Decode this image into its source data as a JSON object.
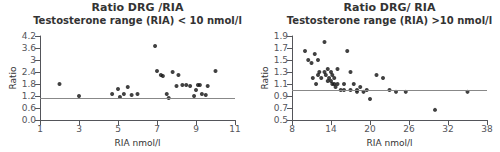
{
  "chart_data": [
    {
      "type": "scatter",
      "title": "Ratio DRG /RIA",
      "subtitle": "Testosterone range (RIA) < 10 nmol/l",
      "x_label": "RIA nmol/l",
      "y_label": "Ratio",
      "xlim": [
        1,
        11
      ],
      "ylim": [
        0,
        4.2
      ],
      "xticks": [
        1,
        3,
        5,
        7,
        9,
        11
      ],
      "yticks": [
        {
          "value": 0,
          "label": "0.0"
        },
        0.6,
        1.2,
        1.8,
        2.4,
        3.0,
        3.6,
        4.2
      ],
      "hline": 1.1,
      "color": "#111111",
      "grid": false,
      "x": [
        2.0,
        3.0,
        4.7,
        5.0,
        5.1,
        5.3,
        5.5,
        5.7,
        6.0,
        6.9,
        7.0,
        7.2,
        7.3,
        7.5,
        7.6,
        7.8,
        8.0,
        8.1,
        8.3,
        8.5,
        8.7,
        8.9,
        9.0,
        9.1,
        9.2,
        9.3,
        9.5,
        9.6,
        10.0
      ],
      "values": [
        1.8,
        1.2,
        1.3,
        1.55,
        1.15,
        1.3,
        1.65,
        1.25,
        1.3,
        3.7,
        2.45,
        2.25,
        2.2,
        1.3,
        1.1,
        2.4,
        1.7,
        2.25,
        1.75,
        1.75,
        1.7,
        1.2,
        1.5,
        1.75,
        1.75,
        1.3,
        1.25,
        1.7,
        2.45
      ]
    },
    {
      "type": "scatter",
      "title": "Ratio DRG/ RIA",
      "subtitle": "Testosterone range (RIA) >10 nmol/l",
      "x_label": "RIA nmol/l",
      "y_label": "Ratio",
      "xlim": [
        8,
        38
      ],
      "ylim": [
        0.5,
        1.9
      ],
      "xticks": [
        8,
        14,
        20,
        26,
        32,
        38
      ],
      "yticks": [
        0.5,
        0.7,
        0.9,
        1.1,
        1.3,
        1.5,
        1.7,
        1.9
      ],
      "hline": 1.0,
      "color": "#111111",
      "grid": false,
      "x": [
        10.0,
        10.5,
        11.0,
        11.2,
        11.5,
        11.7,
        12.0,
        12.0,
        12.2,
        12.5,
        13.0,
        13.0,
        13.2,
        13.5,
        13.5,
        13.7,
        14.0,
        14.0,
        14.2,
        14.2,
        14.5,
        14.5,
        14.7,
        15.0,
        15.0,
        15.5,
        16.0,
        16.0,
        16.5,
        17.0,
        17.0,
        17.5,
        18.0,
        18.0,
        18.5,
        19.0,
        19.5,
        20.0,
        21.0,
        22.0,
        23.0,
        24.0,
        25.5,
        30.0,
        35.0
      ],
      "values": [
        1.65,
        1.5,
        1.45,
        1.2,
        1.6,
        1.1,
        1.25,
        1.5,
        1.3,
        1.2,
        1.8,
        1.3,
        1.25,
        1.15,
        1.35,
        1.2,
        1.15,
        1.3,
        1.1,
        1.25,
        1.1,
        1.2,
        1.05,
        1.1,
        1.35,
        1.0,
        1.1,
        1.0,
        1.65,
        1.3,
        1.0,
        1.1,
        0.97,
        1.0,
        1.05,
        0.97,
        1.0,
        0.85,
        1.25,
        1.2,
        1.0,
        0.97,
        0.97,
        0.67,
        0.97
      ]
    }
  ]
}
